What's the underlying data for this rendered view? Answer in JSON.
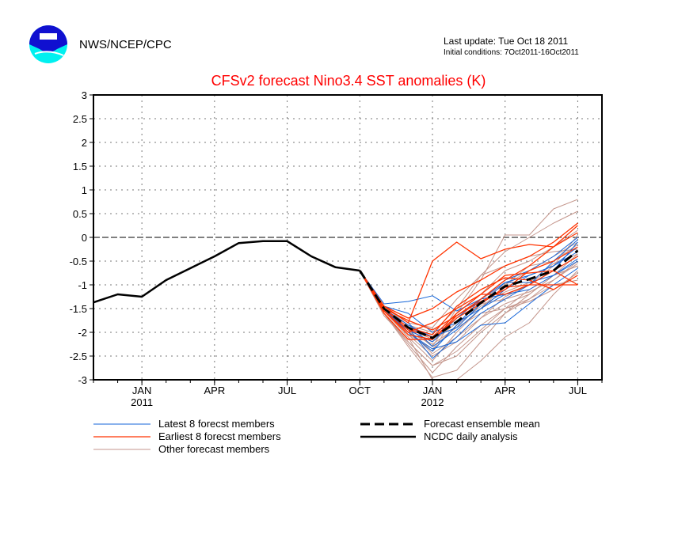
{
  "header": {
    "org": "NWS/NCEP/CPC",
    "logo_text": "NOAA",
    "last_update": "Last update: Tue Oct 18 2011",
    "initial_conditions": "Initial conditions: 7Oct2011-16Oct2011"
  },
  "colors": {
    "title": "#ff0000",
    "latest": "#1565d8",
    "earliest": "#ff3300",
    "other": "#c4968c",
    "mean": "#000000",
    "analysis": "#000000"
  },
  "chart_data": {
    "type": "line",
    "title": "CFSv2 forecast Nino3.4 SST anomalies (K)",
    "xlabel": "",
    "ylabel": "",
    "ylim": [
      -3,
      3
    ],
    "yticks": [
      "3",
      "2.5",
      "2",
      "1.5",
      "1",
      "0.5",
      "0",
      "-0.5",
      "-1",
      "-1.5",
      "-2",
      "-2.5",
      "-3"
    ],
    "ytick_values": [
      3,
      2.5,
      2,
      1.5,
      1,
      0.5,
      0,
      -0.5,
      -1,
      -1.5,
      -2,
      -2.5,
      -3
    ],
    "xlim_months_from_jan2011": [
      -2,
      19
    ],
    "xticks": [
      {
        "month": 0,
        "label": "JAN",
        "year": "2011"
      },
      {
        "month": 3,
        "label": "APR",
        "year": ""
      },
      {
        "month": 6,
        "label": "JUL",
        "year": ""
      },
      {
        "month": 9,
        "label": "OCT",
        "year": ""
      },
      {
        "month": 12,
        "label": "JAN",
        "year": "2012"
      },
      {
        "month": 15,
        "label": "APR",
        "year": ""
      },
      {
        "month": 18,
        "label": "JUL",
        "year": ""
      }
    ],
    "grid": true,
    "analysis": {
      "name": "NCDC daily analysis",
      "months": [
        -2,
        -1,
        0,
        1,
        2,
        3,
        4,
        5,
        6,
        7,
        8,
        9
      ],
      "values": [
        -1.37,
        -1.2,
        -1.25,
        -0.9,
        -0.65,
        -0.4,
        -0.12,
        -0.08,
        -0.08,
        -0.4,
        -0.63,
        -0.7
      ]
    },
    "forecast_months": [
      9,
      10,
      11,
      12,
      13,
      14,
      15,
      16,
      17,
      18
    ],
    "ensemble_mean": {
      "name": "Forecast ensemble mean",
      "values": [
        -0.7,
        -1.5,
        -1.9,
        -2.12,
        -1.78,
        -1.38,
        -1.03,
        -0.88,
        -0.7,
        -0.28
      ]
    },
    "latest_members": {
      "name": "Latest 8 forecst members",
      "series": [
        [
          -0.7,
          -1.4,
          -1.35,
          -1.23,
          -1.55,
          -1.3,
          -0.95,
          -0.8,
          -0.6,
          -0.3
        ],
        [
          -0.7,
          -1.45,
          -1.6,
          -2.0,
          -1.8,
          -1.5,
          -1.2,
          -1.1,
          -0.8,
          -0.5
        ],
        [
          -0.7,
          -1.5,
          -1.9,
          -2.55,
          -2.1,
          -1.6,
          -1.3,
          -1.0,
          -0.7,
          -0.1
        ],
        [
          -0.7,
          -1.5,
          -2.0,
          -2.35,
          -2.2,
          -1.85,
          -1.8,
          -1.4,
          -1.0,
          -0.65
        ],
        [
          -0.7,
          -1.55,
          -1.95,
          -2.2,
          -1.7,
          -1.3,
          -0.9,
          -0.7,
          -0.4,
          0.0
        ],
        [
          -0.7,
          -1.5,
          -1.85,
          -2.1,
          -1.9,
          -1.4,
          -0.95,
          -0.95,
          -0.8,
          -0.45
        ],
        [
          -0.7,
          -1.45,
          -1.8,
          -2.3,
          -1.95,
          -1.5,
          -1.1,
          -0.8,
          -0.6,
          -0.2
        ],
        [
          -0.7,
          -1.5,
          -2.0,
          -2.4,
          -1.85,
          -1.3,
          -1.2,
          -1.0,
          -0.5,
          -0.05
        ]
      ]
    },
    "earliest_members": {
      "name": "Earliest 8 forecst members",
      "series": [
        [
          -0.7,
          -1.45,
          -1.8,
          -0.5,
          -0.1,
          -0.45,
          -0.25,
          -0.15,
          -0.2,
          0.1
        ],
        [
          -0.7,
          -1.45,
          -1.7,
          -1.5,
          -1.15,
          -0.9,
          -0.6,
          -0.4,
          -0.1,
          0.3
        ],
        [
          -0.7,
          -1.55,
          -2.05,
          -2.15,
          -1.65,
          -1.3,
          -0.9,
          -0.6,
          -0.2,
          0.25
        ],
        [
          -0.7,
          -1.5,
          -1.95,
          -2.1,
          -1.6,
          -1.2,
          -0.8,
          -0.75,
          -0.7,
          -1.0
        ],
        [
          -0.7,
          -1.55,
          -2.0,
          -1.8,
          -1.5,
          -1.2,
          -1.2,
          -1.0,
          -1.0,
          -1.0
        ],
        [
          -0.7,
          -1.5,
          -1.9,
          -2.05,
          -1.45,
          -1.1,
          -0.85,
          -0.9,
          -1.1,
          -0.8
        ],
        [
          -0.7,
          -1.6,
          -2.15,
          -2.15,
          -1.7,
          -1.4,
          -1.05,
          -1.0,
          -0.7,
          -0.4
        ],
        [
          -0.7,
          -1.5,
          -1.75,
          -1.95,
          -1.65,
          -1.35,
          -1.1,
          -0.7,
          -0.5,
          -0.2
        ]
      ]
    },
    "other_members": {
      "name": "Other forecast members",
      "series": [
        [
          -0.7,
          -1.55,
          -2.1,
          -3.0,
          -3.0,
          -2.6,
          -2.1,
          -1.8,
          -1.2,
          -0.7
        ],
        [
          -0.7,
          -1.6,
          -2.2,
          -2.7,
          -2.5,
          -2.0,
          -1.6,
          -1.3,
          -0.9,
          -0.5
        ],
        [
          -0.7,
          -1.5,
          -2.0,
          -2.4,
          -1.6,
          -0.9,
          0.05,
          0.05,
          0.6,
          0.8
        ],
        [
          -0.7,
          -1.5,
          -1.9,
          -2.3,
          -1.5,
          -0.8,
          -0.3,
          0.0,
          0.3,
          0.55
        ],
        [
          -0.7,
          -1.55,
          -2.05,
          -2.5,
          -2.2,
          -1.7,
          -1.4,
          -1.2,
          -0.8,
          -0.6
        ],
        [
          -0.7,
          -1.45,
          -1.85,
          -2.0,
          -1.5,
          -1.2,
          -0.7,
          -0.5,
          -0.2,
          0.15
        ],
        [
          -0.7,
          -1.6,
          -2.25,
          -2.85,
          -2.3,
          -1.85,
          -1.5,
          -1.3,
          -1.0,
          -0.9
        ],
        [
          -0.7,
          -1.5,
          -1.95,
          -2.2,
          -1.8,
          -1.4,
          -1.3,
          -1.15,
          -0.9,
          -0.55
        ],
        [
          -0.7,
          -1.55,
          -2.1,
          -2.6,
          -2.0,
          -1.5,
          -1.0,
          -0.7,
          -0.4,
          -0.1
        ],
        [
          -0.7,
          -1.45,
          -1.8,
          -1.9,
          -1.3,
          -0.8,
          -0.6,
          -0.4,
          -0.3,
          -0.25
        ],
        [
          -0.7,
          -1.6,
          -2.3,
          -2.95,
          -2.8,
          -2.2,
          -1.6,
          -1.2,
          -0.8,
          -0.35
        ],
        [
          -0.7,
          -1.5,
          -2.0,
          -2.25,
          -1.9,
          -1.6,
          -1.5,
          -1.35,
          -1.1,
          -0.75
        ],
        [
          -0.7,
          -1.55,
          -1.95,
          -2.45,
          -2.1,
          -1.7,
          -1.25,
          -1.0,
          -0.6,
          0.05
        ],
        [
          -0.7,
          -1.5,
          -1.9,
          -2.15,
          -1.7,
          -1.3,
          -1.0,
          -0.6,
          -0.5,
          -0.15
        ],
        [
          -0.7,
          -1.65,
          -2.2,
          -2.7,
          -2.4,
          -1.95,
          -1.5,
          -1.1,
          -0.8,
          -0.6
        ],
        [
          -0.7,
          -1.5,
          -2.05,
          -2.35,
          -1.85,
          -1.45,
          -1.15,
          -0.95,
          -0.55,
          -0.35
        ]
      ]
    },
    "legend": {
      "placement": "bottom",
      "entries": [
        {
          "key": "latest",
          "label": "Latest 8 forecst members"
        },
        {
          "key": "earliest",
          "label": "Earliest 8 forecst members"
        },
        {
          "key": "other",
          "label": "Other forecast members"
        },
        {
          "key": "mean",
          "label": "Forecast ensemble mean"
        },
        {
          "key": "analysis",
          "label": "NCDC daily analysis"
        }
      ]
    }
  }
}
